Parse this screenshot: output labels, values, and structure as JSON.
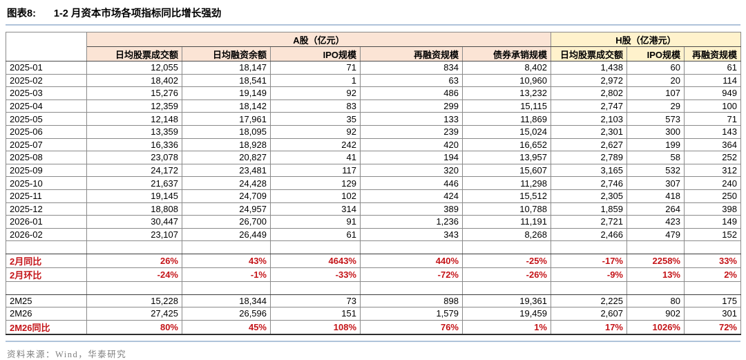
{
  "figure_tag": "图表8:",
  "source": "资料来源：Wind，华泰研究",
  "colors": {
    "a_share_header_bg": "#FBE4D5",
    "h_share_header_bg": "#FFF2CC",
    "highlight_red": "#C41418",
    "rule_blue": "#AFC3DA",
    "source_gray": "#7F7F7F"
  },
  "chart_data": {
    "type": "table",
    "title": "1-2 月资本市场各项指标同比增长强劲",
    "column_groups": [
      {
        "label": "A股（亿元）",
        "span": 5
      },
      {
        "label": "H股（亿港元）",
        "span": 3
      }
    ],
    "columns": [
      "日均股票成交额",
      "日均融资余额",
      "IPO规模",
      "再融资规模",
      "债券承销规模",
      "日均股票成交额",
      "IPO规模",
      "再融资规模"
    ],
    "rows": [
      {
        "label": "2025-01",
        "style": "normal",
        "values": [
          "12,055",
          "18,147",
          "71",
          "834",
          "8,402",
          "1,438",
          "60",
          "61"
        ]
      },
      {
        "label": "2025-02",
        "style": "normal",
        "values": [
          "18,402",
          "18,541",
          "1",
          "63",
          "10,960",
          "2,972",
          "20",
          "114"
        ]
      },
      {
        "label": "2025-03",
        "style": "normal",
        "values": [
          "15,276",
          "19,149",
          "92",
          "486",
          "13,232",
          "2,802",
          "107",
          "949"
        ]
      },
      {
        "label": "2025-04",
        "style": "normal",
        "values": [
          "12,359",
          "18,142",
          "83",
          "299",
          "15,115",
          "2,747",
          "29",
          "100"
        ]
      },
      {
        "label": "2025-05",
        "style": "normal",
        "values": [
          "12,148",
          "17,961",
          "35",
          "133",
          "11,869",
          "2,103",
          "573",
          "71"
        ]
      },
      {
        "label": "2025-06",
        "style": "normal",
        "values": [
          "13,359",
          "18,095",
          "92",
          "239",
          "15,024",
          "2,301",
          "300",
          "143"
        ]
      },
      {
        "label": "2025-07",
        "style": "normal",
        "values": [
          "16,336",
          "18,928",
          "242",
          "420",
          "16,652",
          "2,627",
          "199",
          "364"
        ]
      },
      {
        "label": "2025-08",
        "style": "normal",
        "values": [
          "23,078",
          "20,827",
          "41",
          "194",
          "13,957",
          "2,789",
          "58",
          "252"
        ]
      },
      {
        "label": "2025-09",
        "style": "normal",
        "values": [
          "24,172",
          "23,481",
          "117",
          "320",
          "15,607",
          "3,165",
          "532",
          "312"
        ]
      },
      {
        "label": "2025-10",
        "style": "normal",
        "values": [
          "21,637",
          "24,428",
          "129",
          "446",
          "11,298",
          "2,746",
          "307",
          "240"
        ]
      },
      {
        "label": "2025-11",
        "style": "normal",
        "values": [
          "19,145",
          "24,709",
          "102",
          "424",
          "15,512",
          "2,305",
          "418",
          "250"
        ]
      },
      {
        "label": "2025-12",
        "style": "normal",
        "values": [
          "18,808",
          "24,957",
          "314",
          "389",
          "10,788",
          "1,859",
          "264",
          "398"
        ]
      },
      {
        "label": "2026-01",
        "style": "normal",
        "values": [
          "30,447",
          "26,700",
          "91",
          "1,236",
          "11,191",
          "2,721",
          "423",
          "149"
        ]
      },
      {
        "label": "2026-02",
        "style": "normal",
        "values": [
          "23,107",
          "26,449",
          "61",
          "343",
          "8,268",
          "2,466",
          "479",
          "152"
        ]
      },
      {
        "label": "",
        "style": "empty",
        "values": [
          "",
          "",
          "",
          "",
          "",
          "",
          "",
          ""
        ]
      },
      {
        "label": "2月同比",
        "style": "red",
        "values": [
          "26%",
          "43%",
          "4643%",
          "440%",
          "-25%",
          "-17%",
          "2258%",
          "33%"
        ]
      },
      {
        "label": "2月环比",
        "style": "red",
        "values": [
          "-24%",
          "-1%",
          "-33%",
          "-72%",
          "-26%",
          "-9%",
          "13%",
          "2%"
        ]
      },
      {
        "label": "",
        "style": "empty",
        "values": [
          "",
          "",
          "",
          "",
          "",
          "",
          "",
          ""
        ]
      },
      {
        "label": "2M25",
        "style": "normal",
        "values": [
          "15,228",
          "18,344",
          "73",
          "898",
          "19,361",
          "2,225",
          "80",
          "175"
        ]
      },
      {
        "label": "2M26",
        "style": "normal",
        "values": [
          "27,425",
          "26,596",
          "151",
          "1,579",
          "19,459",
          "2,607",
          "902",
          "301"
        ]
      },
      {
        "label": "2M26同比",
        "style": "red",
        "values": [
          "80%",
          "45%",
          "108%",
          "76%",
          "1%",
          "17%",
          "1026%",
          "72%"
        ]
      }
    ]
  }
}
